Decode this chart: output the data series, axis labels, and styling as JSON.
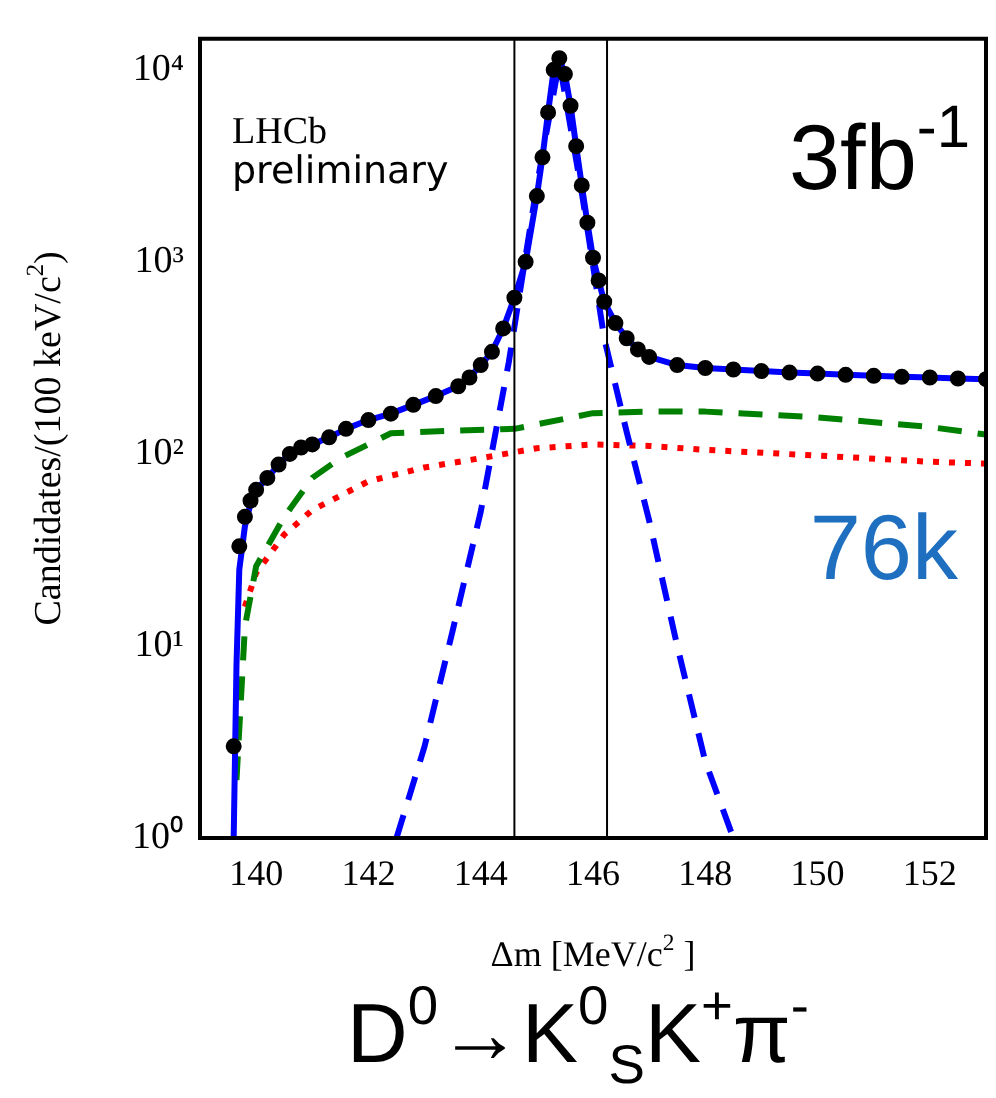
{
  "chart_data": {
    "type": "line",
    "xlabel": "Δm [MeV/c$^{2}$ ]",
    "ylabel": "Candidates/(100 keV/c$^{2}$)",
    "annotations": [
      "LHCb preliminary",
      "3fb$^{-1}$",
      "76k",
      "D$^{0}$→K$^{0}$$_{S}$K$^{+}$π$^{-}$"
    ],
    "xlim": [
      139,
      153
    ],
    "xticks": [
      140,
      142,
      144,
      146,
      148,
      150,
      152
    ],
    "ylim": [
      1,
      14500
    ],
    "yticks": [
      {
        "value": 1,
        "label": "10⁰"
      },
      {
        "value": 10,
        "label": "10¹"
      },
      {
        "value": 100,
        "label": "10²"
      },
      {
        "value": 1000,
        "label": "10³"
      },
      {
        "value": 10000,
        "label": "10⁴"
      }
    ],
    "log": "y",
    "grid": false,
    "legend": false,
    "ref_lines": [
      {
        "axis": "x",
        "value": 144.6,
        "color": "#000000"
      },
      {
        "axis": "x",
        "value": 146.25,
        "color": "#000000"
      }
    ],
    "series": [
      {
        "type": "scatter",
        "marker": "circle",
        "color": "#000000",
        "x": [
          139.6,
          139.7,
          139.8,
          139.9,
          140.0,
          140.2,
          140.4,
          140.6,
          140.8,
          141.0,
          141.3,
          141.6,
          142.0,
          142.4,
          142.8,
          143.2,
          143.6,
          143.8,
          144.0,
          144.2,
          144.4,
          144.6,
          144.8,
          145.0,
          145.1,
          145.2,
          145.3,
          145.4,
          145.5,
          145.6,
          145.7,
          145.8,
          145.9,
          146.0,
          146.1,
          146.2,
          146.4,
          146.6,
          146.8,
          147.0,
          147.5,
          148.0,
          148.5,
          149.0,
          149.5,
          150.0,
          150.5,
          151.0,
          151.5,
          152.0,
          152.5,
          153.0
        ],
        "values": [
          3,
          33,
          47,
          57,
          65,
          75,
          88,
          100,
          108,
          112,
          122,
          135,
          150,
          162,
          180,
          200,
          225,
          250,
          290,
          340,
          450,
          650,
          1000,
          2200,
          3500,
          6000,
          10000,
          11500,
          9500,
          6500,
          4000,
          2500,
          1600,
          1050,
          800,
          620,
          480,
          400,
          350,
          320,
          290,
          280,
          275,
          270,
          265,
          262,
          258,
          255,
          252,
          250,
          247,
          245
        ]
      },
      {
        "marker": "none",
        "line_style": "solid",
        "color": "#0000ff",
        "x": [
          139.6,
          139.65,
          139.7,
          139.8,
          139.9,
          140.0,
          140.2,
          140.4,
          140.6,
          140.8,
          141.0,
          141.3,
          141.6,
          142.0,
          142.4,
          142.8,
          143.2,
          143.6,
          143.8,
          144.0,
          144.2,
          144.4,
          144.6,
          144.8,
          145.0,
          145.1,
          145.2,
          145.3,
          145.4,
          145.5,
          145.6,
          145.7,
          145.8,
          145.9,
          146.0,
          146.1,
          146.2,
          146.4,
          146.6,
          146.8,
          147.0,
          147.5,
          148.0,
          148.5,
          149.0,
          149.5,
          150.0,
          150.5,
          151.0,
          151.5,
          152.0,
          152.5,
          153.0
        ],
        "values": [
          1,
          8,
          25,
          42,
          55,
          65,
          75,
          88,
          100,
          108,
          112,
          122,
          135,
          150,
          162,
          180,
          200,
          225,
          250,
          290,
          340,
          450,
          650,
          1000,
          2200,
          3500,
          6000,
          10000,
          11500,
          9500,
          6500,
          4000,
          2500,
          1600,
          1050,
          800,
          620,
          480,
          400,
          350,
          320,
          290,
          280,
          275,
          270,
          265,
          262,
          258,
          255,
          252,
          250,
          247,
          245
        ]
      },
      {
        "marker": "none",
        "line_style": "dashed",
        "color": "#0000ff",
        "x": [
          142.5,
          143,
          143.5,
          144,
          144.5,
          145,
          145.4,
          145.8,
          146.2,
          146.6,
          147,
          147.5,
          148,
          148.5
        ],
        "values": [
          1,
          3,
          12,
          50,
          300,
          2500,
          11000,
          2300,
          400,
          130,
          45,
          10,
          2.5,
          1
        ]
      },
      {
        "marker": "none",
        "line_style": "dashed",
        "color": "#008000",
        "x": [
          139.65,
          139.8,
          140.0,
          140.5,
          141.0,
          141.5,
          142.4,
          143.5,
          144.6,
          146,
          147,
          148,
          150,
          152,
          153
        ],
        "values": [
          2,
          12.6,
          26,
          47,
          75,
          95,
          128,
          132,
          135,
          163,
          166,
          166,
          155,
          138,
          126
        ]
      },
      {
        "marker": "none",
        "line_style": "dotted",
        "color": "#ff0000",
        "x": [
          139.8,
          140.0,
          140.5,
          141.0,
          142.0,
          143.0,
          144.0,
          145.0,
          146.0,
          147.0,
          148.0,
          150.0,
          152.0,
          153.0
        ],
        "values": [
          16,
          24,
          38,
          51,
          72,
          85,
          95,
          107,
          112,
          110,
          105,
          98,
          91,
          89
        ]
      }
    ]
  }
}
